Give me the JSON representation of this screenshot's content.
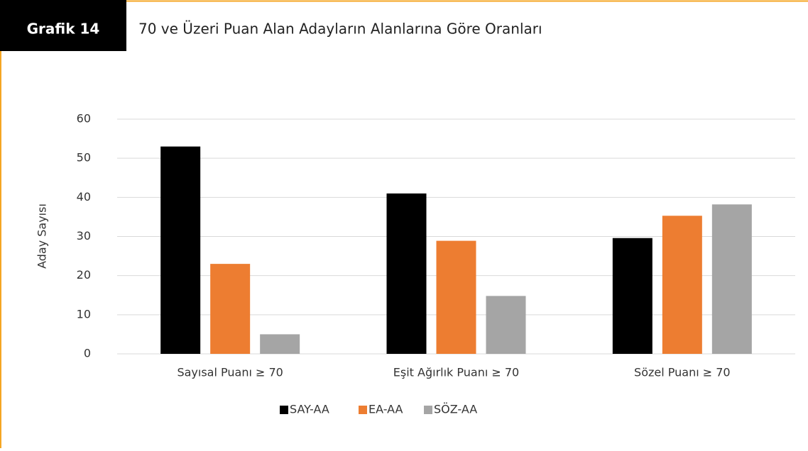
{
  "figure_label": "Grafik 14",
  "chart_data": {
    "type": "bar",
    "title": "70 ve Üzeri Puan Alan Adayların Alanlarına Göre Oranları",
    "y_label": "Aday Sayısı",
    "categories": [
      "Sayısal Puanı ≥ 70",
      "Eşit Ağırlık Puanı ≥ 70",
      "Sözel Puanı ≥ 70"
    ],
    "series": [
      {
        "name": "SAY-AA",
        "color": "#000000",
        "values": [
          53,
          41,
          29.6
        ]
      },
      {
        "name": "EA-AA",
        "color": "#ed7d31",
        "values": [
          23,
          28.9,
          35.3
        ]
      },
      {
        "name": "SÖZ-AA",
        "color": "#a5a5a5",
        "values": [
          5,
          14.8,
          38.2
        ]
      }
    ],
    "ylim": [
      0,
      60
    ],
    "yticks": [
      0,
      10,
      20,
      30,
      40,
      50,
      60
    ],
    "grid": true,
    "legend": "bottom"
  }
}
